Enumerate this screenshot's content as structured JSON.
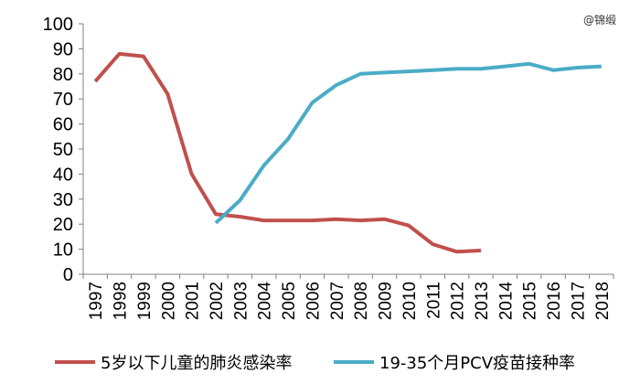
{
  "watermark": "@锦缎",
  "chart_data": {
    "type": "line",
    "x": [
      "1997",
      "1998",
      "1999",
      "2000",
      "2001",
      "2002",
      "2003",
      "2004",
      "2005",
      "2006",
      "2007",
      "2008",
      "2009",
      "2010",
      "2011",
      "2012",
      "2013",
      "2014",
      "2015",
      "2016",
      "2017",
      "2018"
    ],
    "ylim": [
      0,
      100
    ],
    "yticks": [
      0,
      10,
      20,
      30,
      40,
      50,
      60,
      70,
      80,
      90,
      100
    ],
    "grid": false,
    "legend_position": "bottom",
    "series": [
      {
        "name": "5岁以下儿童的肺炎感染率",
        "color": "#c0504d",
        "values": [
          77,
          88,
          87,
          72,
          40,
          24,
          23,
          21.5,
          21.5,
          21.5,
          22,
          21.5,
          22,
          19.5,
          12,
          9,
          9.5,
          null,
          null,
          null,
          null,
          null
        ]
      },
      {
        "name": "19-35个月PCV疫苗接种率",
        "color": "#4bacc6",
        "values": [
          null,
          null,
          null,
          null,
          null,
          20.5,
          29.5,
          43.5,
          54,
          68.5,
          75.5,
          80,
          80.5,
          81,
          81.5,
          82,
          82,
          83,
          84,
          81.5,
          82.5,
          83
        ]
      }
    ]
  }
}
